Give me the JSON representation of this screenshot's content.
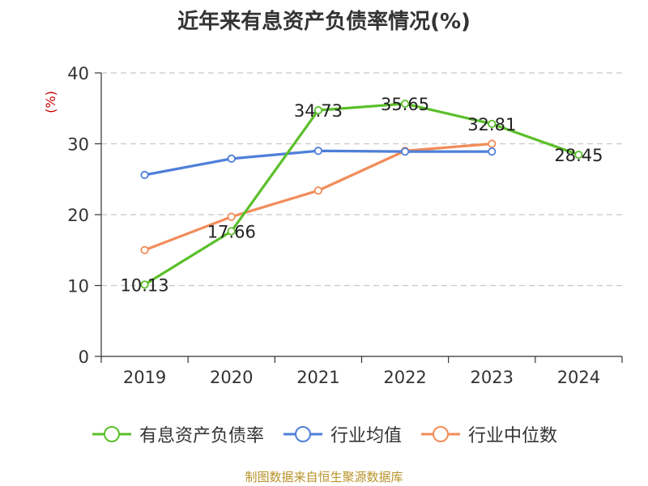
{
  "footer": "制图数据来自恒生聚源数据库",
  "colors": {
    "footer": "#b8922a",
    "axis": "#333333",
    "grid": "#c8c8c8",
    "unit": "#cc0000"
  },
  "chart_data": {
    "type": "line",
    "title": "近年来有息资产负债率情况(%)",
    "ylabel": "(%)",
    "categories": [
      "2019",
      "2020",
      "2021",
      "2022",
      "2023",
      "2024"
    ],
    "ylim": [
      0,
      40
    ],
    "yticks": [
      "0",
      "10",
      "20",
      "30",
      "40"
    ],
    "grid": true,
    "legend_position": "bottom",
    "series": [
      {
        "name": "有息资产负债率",
        "color": "#5bbf2a",
        "values": [
          10.13,
          17.66,
          34.73,
          35.65,
          32.81,
          28.45
        ],
        "labels": [
          "10.13",
          "17.66",
          "34.73",
          "35.65",
          "32.81",
          "28.45"
        ]
      },
      {
        "name": "行业均值",
        "color": "#4f7fd9",
        "values": [
          25.6,
          27.9,
          29.0,
          28.9,
          28.9,
          null
        ]
      },
      {
        "name": "行业中位数",
        "color": "#f28c5a",
        "values": [
          15.0,
          19.7,
          23.4,
          29.0,
          30.0,
          null
        ]
      }
    ]
  }
}
